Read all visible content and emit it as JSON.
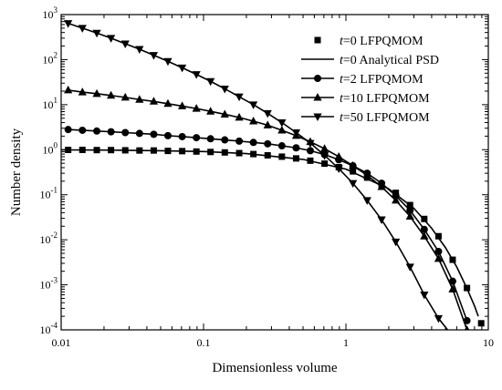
{
  "chart_data": {
    "type": "line",
    "xlabel": "Dimensionless volume",
    "ylabel": "Number density",
    "x_scale": "log",
    "y_scale": "log",
    "xlim": [
      0.01,
      10
    ],
    "ylim": [
      0.0001,
      1000
    ],
    "x_ticks": [
      {
        "value": 0.01,
        "label": "0.01"
      },
      {
        "value": 0.1,
        "label": "0.1"
      },
      {
        "value": 1,
        "label": "1"
      },
      {
        "value": 10,
        "label": "10"
      }
    ],
    "y_ticks": [
      {
        "value": 0.0001,
        "base": "10",
        "exp": "-4"
      },
      {
        "value": 0.001,
        "base": "10",
        "exp": "-3"
      },
      {
        "value": 0.01,
        "base": "10",
        "exp": "-2"
      },
      {
        "value": 0.1,
        "base": "10",
        "exp": "-1"
      },
      {
        "value": 1,
        "base": "10",
        "exp": "0"
      },
      {
        "value": 10,
        "base": "10",
        "exp": "1"
      },
      {
        "value": 100,
        "base": "10",
        "exp": "2"
      },
      {
        "value": 1000,
        "base": "10",
        "exp": "3"
      }
    ],
    "legend_position": "top-right",
    "legend": [
      {
        "italic": "t",
        "text": "=0  LFPQMOM",
        "marker": "square",
        "line": false
      },
      {
        "italic": "t",
        "text": "=0  Analytical PSD",
        "marker": "none",
        "line": true
      },
      {
        "italic": "t",
        "text": "=2  LFPQMOM",
        "marker": "circle",
        "line": true
      },
      {
        "italic": "t",
        "text": "=10 LFPQMOM",
        "marker": "triangle-up",
        "line": true
      },
      {
        "italic": "t",
        "text": "=50 LFPQMOM",
        "marker": "triangle-down",
        "line": true
      }
    ],
    "series": [
      {
        "name": "t=0 LFPQMOM",
        "marker": "square",
        "line": false,
        "x": [
          0.0112,
          0.0141,
          0.0178,
          0.0224,
          0.0282,
          0.0355,
          0.0447,
          0.0562,
          0.0708,
          0.0891,
          0.112,
          0.141,
          0.178,
          0.224,
          0.282,
          0.355,
          0.447,
          0.562,
          0.708,
          0.891,
          1.12,
          1.41,
          1.78,
          2.24,
          2.82,
          3.55,
          4.47,
          5.62,
          7.08,
          8.91
        ],
        "y": [
          0.99,
          0.99,
          0.98,
          0.98,
          0.97,
          0.96,
          0.96,
          0.94,
          0.93,
          0.91,
          0.89,
          0.87,
          0.84,
          0.8,
          0.75,
          0.7,
          0.64,
          0.57,
          0.49,
          0.41,
          0.33,
          0.24,
          0.17,
          0.11,
          0.059,
          0.029,
          0.012,
          0.0036,
          0.00085,
          0.00014
        ]
      },
      {
        "name": "t=0 Analytical PSD",
        "marker": "none",
        "line": true,
        "x": [
          0.01,
          0.02,
          0.05,
          0.1,
          0.2,
          0.5,
          1,
          2,
          3,
          4,
          5,
          6,
          7,
          8,
          8.5
        ],
        "y": [
          0.99,
          0.98,
          0.95,
          0.91,
          0.82,
          0.61,
          0.37,
          0.135,
          0.05,
          0.018,
          0.0067,
          0.0025,
          0.0009,
          0.00034,
          0.0002
        ]
      },
      {
        "name": "t=2 LFPQMOM",
        "marker": "circle",
        "line": true,
        "x": [
          0.0112,
          0.0141,
          0.0178,
          0.0224,
          0.0282,
          0.0355,
          0.0447,
          0.0562,
          0.0708,
          0.0891,
          0.112,
          0.141,
          0.178,
          0.224,
          0.282,
          0.355,
          0.447,
          0.562,
          0.708,
          0.891,
          1.12,
          1.41,
          1.78,
          2.24,
          2.82,
          3.55,
          4.47,
          5.62,
          7.08
        ],
        "y": [
          2.8,
          2.7,
          2.6,
          2.5,
          2.4,
          2.3,
          2.2,
          2.05,
          1.95,
          1.85,
          1.75,
          1.65,
          1.55,
          1.45,
          1.35,
          1.22,
          1.1,
          0.95,
          0.78,
          0.6,
          0.44,
          0.3,
          0.18,
          0.095,
          0.045,
          0.017,
          0.0055,
          0.0012,
          0.00016
        ]
      },
      {
        "name": "t=10 LFPQMOM",
        "marker": "triangle-up",
        "line": true,
        "x": [
          0.0112,
          0.0141,
          0.0178,
          0.0224,
          0.0282,
          0.0355,
          0.0447,
          0.0562,
          0.0708,
          0.0891,
          0.112,
          0.141,
          0.178,
          0.224,
          0.282,
          0.355,
          0.447,
          0.562,
          0.708,
          0.891,
          1.12,
          1.41,
          1.78,
          2.24,
          2.82,
          3.55,
          4.47,
          5.62,
          7.08
        ],
        "y": [
          21,
          19,
          17.5,
          16,
          14.5,
          13,
          11.8,
          10.5,
          9.3,
          8.2,
          7.1,
          6.1,
          5.2,
          4.3,
          3.5,
          2.7,
          2.05,
          1.5,
          1.05,
          0.7,
          0.44,
          0.27,
          0.15,
          0.075,
          0.033,
          0.012,
          0.0038,
          0.0008,
          0.0001
        ]
      },
      {
        "name": "t=50 LFPQMOM",
        "marker": "triangle-down",
        "line": true,
        "x": [
          0.0112,
          0.0141,
          0.0178,
          0.0224,
          0.0282,
          0.0355,
          0.0447,
          0.0562,
          0.0708,
          0.0891,
          0.112,
          0.141,
          0.178,
          0.224,
          0.282,
          0.355,
          0.447,
          0.562,
          0.708,
          0.891,
          1.12,
          1.41,
          1.78,
          2.24,
          2.82,
          3.55,
          4.47,
          5.62
        ],
        "y": [
          640,
          500,
          390,
          300,
          225,
          170,
          125,
          92,
          66,
          47,
          33,
          22.5,
          15,
          10,
          6.4,
          4,
          2.4,
          1.4,
          0.75,
          0.38,
          0.18,
          0.075,
          0.028,
          0.009,
          0.0025,
          0.0006,
          0.00018,
          7.2e-05
        ]
      }
    ]
  }
}
